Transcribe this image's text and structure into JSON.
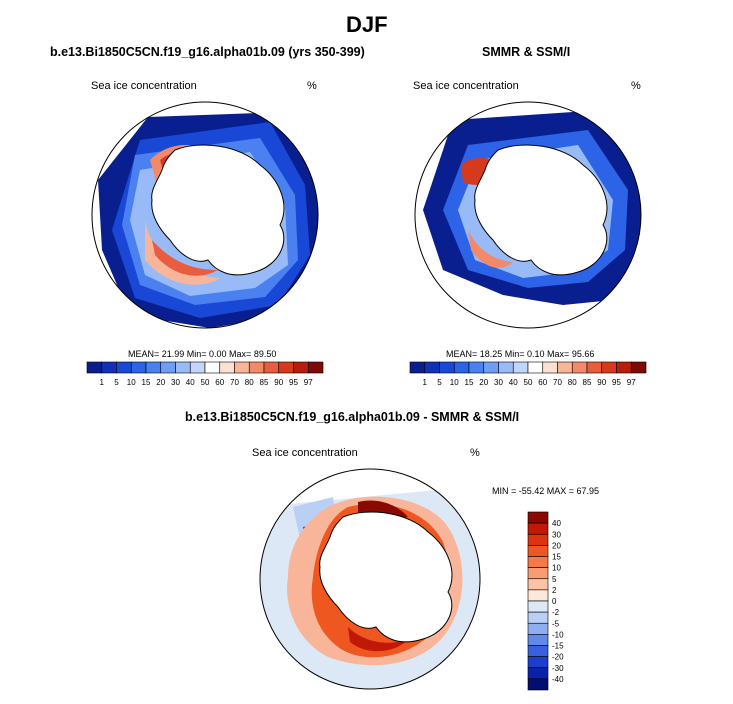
{
  "page": {
    "season_title": "DJF",
    "diff_title": "b.e13.Bi1850C5CN.f19_g16.alpha01b.09 - SMMR & SSM/I"
  },
  "panels": {
    "model": {
      "title": "b.e13.Bi1850C5CN.f19_g16.alpha01b.09 (yrs 350-399)",
      "field": "Sea ice concentration",
      "units": "%",
      "stats": "MEAN=  21.99  Min=   0.00  Max=  89.50"
    },
    "obs": {
      "title": "SMMR & SSM/I",
      "field": "Sea ice concentration",
      "units": "%",
      "stats": "MEAN=  18.25  Min=   0.10  Max=  95.66"
    },
    "diff": {
      "field": "Sea ice concentration",
      "units": "%",
      "stats": "MIN = -55.42 MAX =  67.95"
    }
  },
  "colorbar": {
    "levels": [
      "1",
      "5",
      "10",
      "15",
      "20",
      "30",
      "40",
      "50",
      "60",
      "70",
      "80",
      "85",
      "90",
      "95",
      "97"
    ],
    "colors": [
      "#0a1f8f",
      "#1030b8",
      "#1a48d6",
      "#2d63e6",
      "#4a80f0",
      "#6f9df5",
      "#98bbf7",
      "#c3d6fa",
      "#ffffff",
      "#fde0cf",
      "#f9b59a",
      "#f28a6a",
      "#e85c3f",
      "#d63a1c",
      "#b51d0c",
      "#7d0a04"
    ]
  },
  "diff_colorbar": {
    "levels": [
      "40",
      "30",
      "20",
      "15",
      "10",
      "5",
      "2",
      "0",
      "-2",
      "-5",
      "-10",
      "-15",
      "-20",
      "-30",
      "-40"
    ],
    "colors": [
      "#8a0a02",
      "#c21808",
      "#dc340f",
      "#ee5820",
      "#f57a45",
      "#f99c73",
      "#fcc2a4",
      "#fde7d9",
      "#dde8f7",
      "#b9cff3",
      "#8eaef0",
      "#6089ea",
      "#3662e0",
      "#1a3fcf",
      "#0a22a8",
      "#030f6e"
    ]
  }
}
